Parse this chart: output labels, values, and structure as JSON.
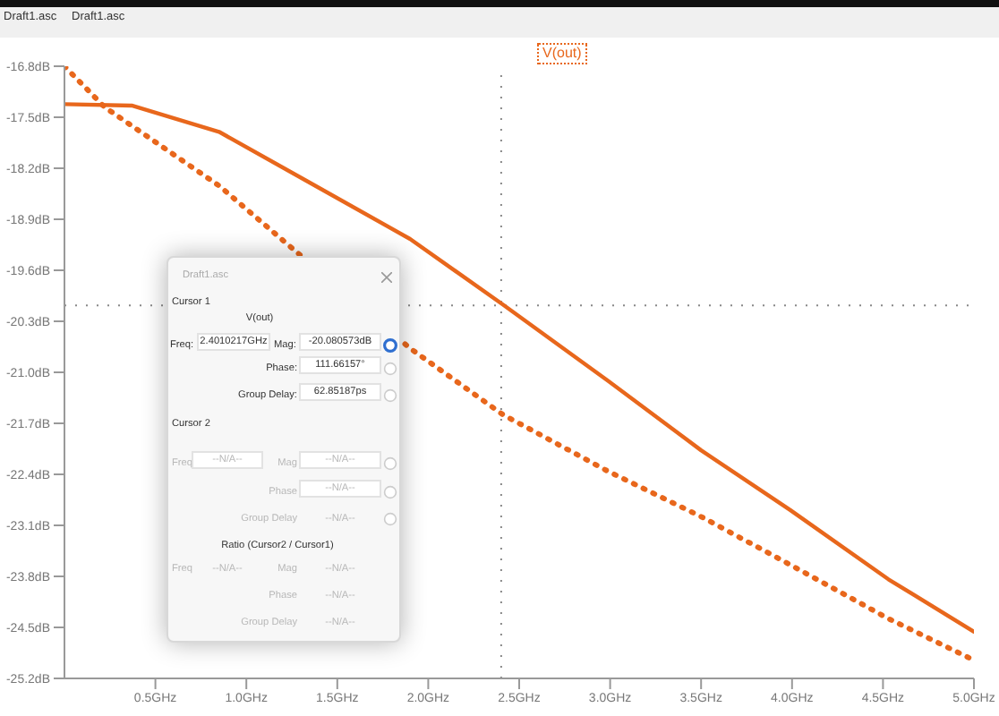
{
  "chart_data": {
    "type": "line",
    "legend": "top",
    "xlim": [
      0,
      5
    ],
    "ylim": [
      -25.2,
      -16.8
    ],
    "xticks": [
      {
        "value": 0.5,
        "label": "0.5GHz"
      },
      {
        "value": 1,
        "label": "1.0GHz"
      },
      {
        "value": 1.5,
        "label": "1.5GHz"
      },
      {
        "value": 2,
        "label": "2.0GHz"
      },
      {
        "value": 2.5,
        "label": "2.5GHz"
      },
      {
        "value": 3,
        "label": "3.0GHz"
      },
      {
        "value": 3.5,
        "label": "3.5GHz"
      },
      {
        "value": 4,
        "label": "4.0GHz"
      },
      {
        "value": 4.5,
        "label": "4.5GHz"
      },
      {
        "value": 5,
        "label": "5.0GHz"
      }
    ],
    "yticks": [
      {
        "value": -16.8,
        "label": "-16.8dB"
      },
      {
        "value": -17.5,
        "label": "-17.5dB"
      },
      {
        "value": -18.2,
        "label": "-18.2dB"
      },
      {
        "value": -18.9,
        "label": "-18.9dB"
      },
      {
        "value": -19.6,
        "label": "-19.6dB"
      },
      {
        "value": -20.3,
        "label": "-20.3dB"
      },
      {
        "value": -21,
        "label": "-21.0dB"
      },
      {
        "value": -21.7,
        "label": "-21.7dB"
      },
      {
        "value": -22.4,
        "label": "-22.4dB"
      },
      {
        "value": -23.1,
        "label": "-23.1dB"
      },
      {
        "value": -23.8,
        "label": "-23.8dB"
      },
      {
        "value": -24.5,
        "label": "-24.5dB"
      },
      {
        "value": -25.2,
        "label": "-25.2dB"
      }
    ],
    "marker": "none",
    "series": [
      {
        "name": "V(out)",
        "color": "#e8671c",
        "line_style": "solid",
        "x": [
          0,
          0.37,
          0.85,
          1.35,
          1.9,
          2.41,
          2.99,
          3.5,
          3.99,
          4.53,
          5
        ],
        "values": [
          -17.32,
          -17.34,
          -17.7,
          -18.4,
          -19.17,
          -20.07,
          -21.12,
          -22.07,
          -22.89,
          -23.84,
          -24.56
        ]
      },
      {
        "color": "#e8671c",
        "line_style": "dotted",
        "x": [
          0,
          0.22,
          0.85,
          1.3,
          1.9,
          2.41,
          2.99,
          3.5,
          3.99,
          4.53,
          5
        ],
        "values": [
          -16.8,
          -17.36,
          -18.44,
          -19.4,
          -20.67,
          -21.58,
          -22.36,
          -22.98,
          -23.64,
          -24.38,
          -24.95
        ]
      }
    ],
    "ref_lines": [
      {
        "axis": "x",
        "value": 2.4010217,
        "color": "#888888",
        "line_style": "dotted"
      },
      {
        "axis": "y",
        "value": -20.080573,
        "color": "#888888",
        "line_style": "dotted"
      }
    ],
    "annotations": [
      "Draft1.asc",
      "Draft1.asc",
      "Draft1.asc",
      "Cursor 1",
      "V(out)",
      "Freq:",
      "2.4010217GHz",
      "Mag:",
      "-20.080573dB",
      "Phase:",
      "111.66157°",
      "Group Delay:",
      "62.85187ps",
      "Cursor 2",
      "Freq",
      "--N/A--",
      "Mag",
      "--N/A--",
      "Phase",
      "--N/A--",
      "Group Delay",
      "--N/A--",
      "Ratio (Cursor2 / Cursor1)",
      "Freq",
      "--N/A--",
      "Mag",
      "--N/A--",
      "Phase",
      "--N/A--",
      "Group Delay",
      "--N/A--"
    ]
  }
}
